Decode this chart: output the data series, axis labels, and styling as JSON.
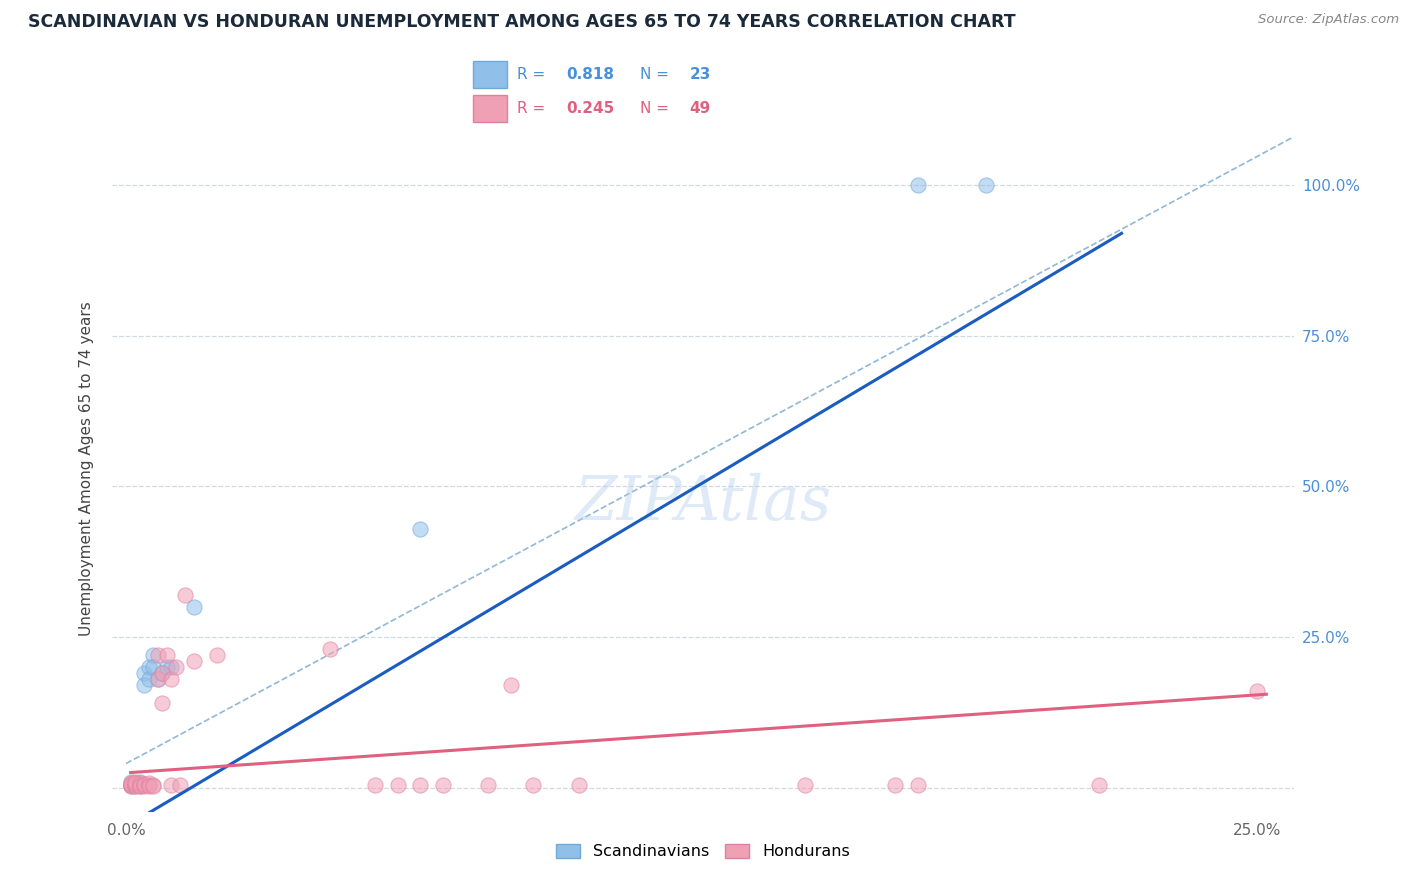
{
  "title": "SCANDINAVIAN VS HONDURAN UNEMPLOYMENT AMONG AGES 65 TO 74 YEARS CORRELATION CHART",
  "source": "Source: ZipAtlas.com",
  "ylabel": "Unemployment Among Ages 65 to 74 years",
  "xlim": [
    -0.003,
    0.258
  ],
  "ylim": [
    -0.04,
    1.1
  ],
  "ytick_positions": [
    0.0,
    0.25,
    0.5,
    0.75,
    1.0
  ],
  "ytick_labels": [
    "",
    "25.0%",
    "50.0%",
    "75.0%",
    "100.0%"
  ],
  "scandinavian_color": "#90c0ea",
  "honduran_color": "#f0a0b5",
  "scandinavian_edge": "#70a8d8",
  "honduran_edge": "#e080a0",
  "blue_line_color": "#1a5cbf",
  "pink_line_color": "#e06080",
  "ref_line_color": "#90b8d8",
  "grid_color": "#d0d8e0",
  "title_color": "#1a2a3a",
  "ylabel_color": "#444444",
  "ytick_color": "#4a90d9",
  "xtick_color": "#666666",
  "source_color": "#888888",
  "legend_border_color": "#cccccc",
  "scandinavian_x": [
    0.001,
    0.001,
    0.001,
    0.002,
    0.002,
    0.002,
    0.003,
    0.003,
    0.003,
    0.004,
    0.004,
    0.005,
    0.005,
    0.006,
    0.006,
    0.007,
    0.008,
    0.009,
    0.01,
    0.015,
    0.065,
    0.175,
    0.19
  ],
  "scandinavian_y": [
    0.005,
    0.01,
    0.005,
    0.005,
    0.008,
    0.005,
    0.005,
    0.01,
    0.005,
    0.19,
    0.17,
    0.2,
    0.18,
    0.22,
    0.2,
    0.18,
    0.19,
    0.2,
    0.2,
    0.3,
    0.43,
    1.0,
    1.0
  ],
  "honduran_x": [
    0.001,
    0.001,
    0.001,
    0.001,
    0.001,
    0.002,
    0.002,
    0.002,
    0.002,
    0.002,
    0.002,
    0.003,
    0.003,
    0.003,
    0.003,
    0.004,
    0.004,
    0.004,
    0.005,
    0.005,
    0.005,
    0.006,
    0.006,
    0.007,
    0.007,
    0.008,
    0.008,
    0.009,
    0.01,
    0.01,
    0.011,
    0.012,
    0.013,
    0.015,
    0.02,
    0.045,
    0.055,
    0.06,
    0.065,
    0.07,
    0.08,
    0.085,
    0.09,
    0.1,
    0.15,
    0.17,
    0.175,
    0.215,
    0.25
  ],
  "honduran_y": [
    0.003,
    0.005,
    0.008,
    0.003,
    0.006,
    0.003,
    0.005,
    0.008,
    0.003,
    0.006,
    0.01,
    0.003,
    0.005,
    0.008,
    0.003,
    0.005,
    0.003,
    0.006,
    0.005,
    0.008,
    0.003,
    0.005,
    0.003,
    0.22,
    0.18,
    0.19,
    0.14,
    0.22,
    0.005,
    0.18,
    0.2,
    0.005,
    0.32,
    0.21,
    0.22,
    0.23,
    0.005,
    0.005,
    0.005,
    0.005,
    0.005,
    0.17,
    0.005,
    0.005,
    0.005,
    0.005,
    0.005,
    0.005,
    0.16
  ],
  "blue_line_x0": 0.001,
  "blue_line_y0": -0.06,
  "blue_line_x1": 0.22,
  "blue_line_y1": 0.92,
  "pink_line_x0": 0.001,
  "pink_line_y0": 0.025,
  "pink_line_x1": 0.252,
  "pink_line_y1": 0.155,
  "ref_line_x0": 0.0,
  "ref_line_y0": 0.04,
  "ref_line_x1": 0.258,
  "ref_line_y1": 1.08
}
